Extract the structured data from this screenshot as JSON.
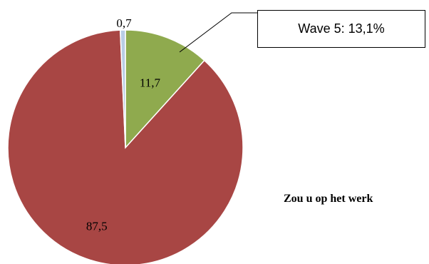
{
  "chart_data": {
    "type": "pie",
    "slices": [
      {
        "label": "",
        "value": 11.7,
        "value_label": "11,7",
        "color": "#8faa4e"
      },
      {
        "label": "",
        "value": 87.5,
        "value_label": "87,5",
        "color": "#a84644"
      },
      {
        "label": "",
        "value": 0.7,
        "value_label": "0,7",
        "color": "#b9cde5"
      }
    ],
    "start_angle_deg": 0,
    "direction": "clockwise",
    "slice_border_color": "#ffffff",
    "annotation": {
      "text": "Wave 5: 13,1%",
      "points_to": "11,7"
    }
  },
  "question_text": "Zou u op het werk"
}
